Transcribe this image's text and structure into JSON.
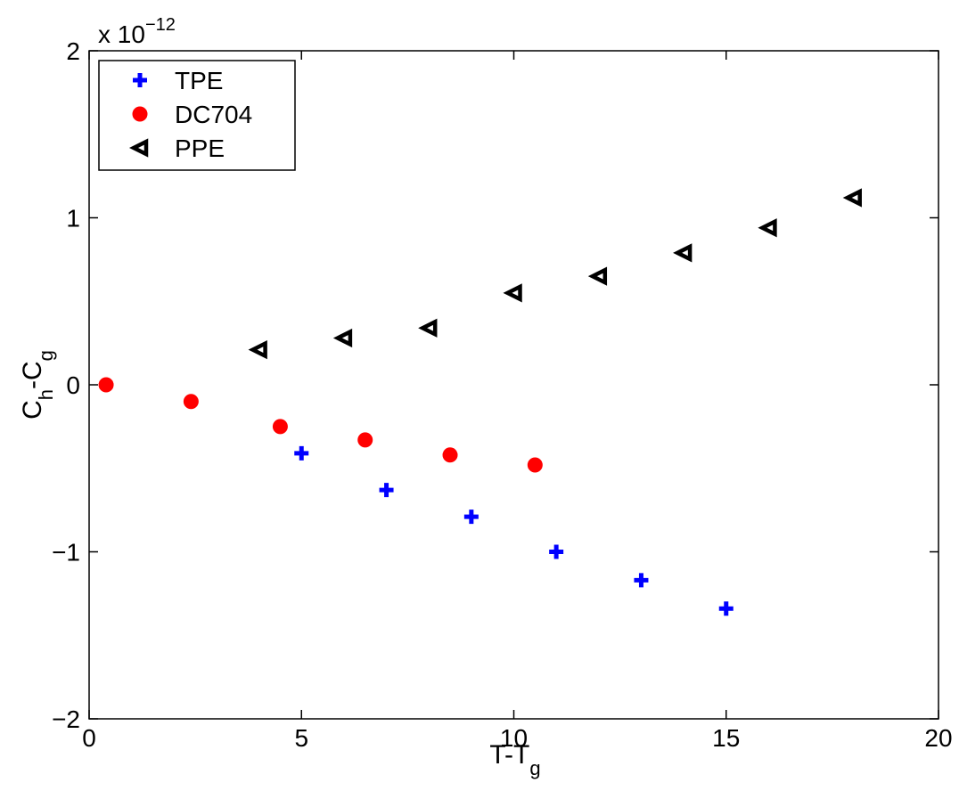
{
  "chart_data": {
    "type": "scatter",
    "xlabel": "T-T",
    "xlabel_sub": "g",
    "ylabel": "C",
    "ylabel_sub1": "h",
    "ylabel_mid": "-C",
    "ylabel_sub2": "g",
    "xlim": [
      0,
      20
    ],
    "ylim": [
      -2,
      2
    ],
    "xticks": [
      0,
      5,
      10,
      15,
      20
    ],
    "yticks": [
      -2,
      -1,
      0,
      1,
      2
    ],
    "xtick_labels": [
      "0",
      "5",
      "10",
      "15",
      "20"
    ],
    "ytick_labels": [
      "−2",
      "−1",
      "0",
      "1",
      "2"
    ],
    "y_multiplier": {
      "prefix": "x 10",
      "exponent": "−12"
    },
    "grid": false,
    "legend_position": "top-left",
    "series": [
      {
        "name": "TPE",
        "marker": "plus",
        "color": "#0000ff",
        "x": [
          5,
          7,
          9,
          11,
          13,
          15
        ],
        "y": [
          -0.41,
          -0.63,
          -0.79,
          -1.0,
          -1.17,
          -1.34
        ]
      },
      {
        "name": "DC704",
        "marker": "circle",
        "color": "#ff0000",
        "x": [
          0.4,
          2.4,
          4.5,
          6.5,
          8.5,
          10.5
        ],
        "y": [
          0.0,
          -0.1,
          -0.25,
          -0.33,
          -0.42,
          -0.48
        ]
      },
      {
        "name": "PPE",
        "marker": "triangle-left",
        "color": "#000000",
        "x": [
          4,
          6,
          8,
          10,
          12,
          14,
          16,
          18
        ],
        "y": [
          0.21,
          0.28,
          0.34,
          0.55,
          0.65,
          0.79,
          0.94,
          1.12
        ]
      }
    ]
  }
}
